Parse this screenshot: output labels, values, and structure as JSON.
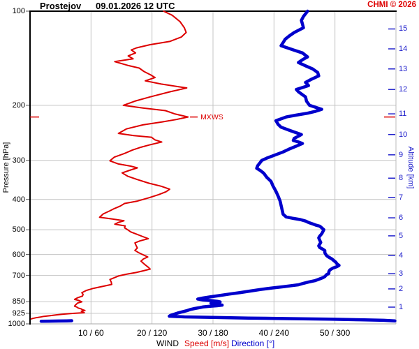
{
  "header": {
    "station": "Prostejov",
    "datetime": "09.01.2026 12 UTC",
    "copyright": "CHMI © 2026"
  },
  "axis_titles": {
    "pressure": "Pressure [hPa]",
    "altitude": "Altitude [km]"
  },
  "footer": {
    "legend_wind": "WIND",
    "legend_speed": "Speed [m/s]",
    "legend_direction": "Direction [°]"
  },
  "colors": {
    "speed": "#dd0000",
    "direction": "#0000cc",
    "grid": "#c4c4c4",
    "axis": "#000000",
    "altitude_axis": "#2222cc",
    "copyright": "#dd0000"
  },
  "chart_data": {
    "type": "line",
    "title": "Prostejov 09.01.2026 12 UTC — vertical wind sounding profile",
    "y_axis": {
      "label": "Pressure [hPa]",
      "scale": "log",
      "range": [
        100,
        1000
      ],
      "ticks": [
        100,
        200,
        300,
        400,
        500,
        600,
        700,
        850,
        925,
        1000
      ]
    },
    "y_axis_right": {
      "label": "Altitude [km]",
      "ticks_km_vs_pressure": [
        [
          1,
          884
        ],
        [
          2,
          773
        ],
        [
          3,
          691
        ],
        [
          4,
          604
        ],
        [
          5,
          523
        ],
        [
          6,
          458
        ],
        [
          7,
          394
        ],
        [
          8,
          342
        ],
        [
          9,
          288
        ],
        [
          10,
          248
        ],
        [
          11,
          213
        ],
        [
          12,
          178
        ],
        [
          13,
          153
        ],
        [
          14,
          132
        ],
        [
          15,
          114
        ]
      ]
    },
    "x_axis": {
      "label": "WIND",
      "speed": {
        "label": "Speed [m/s]",
        "range": [
          0,
          60
        ],
        "ticks": [
          10,
          20,
          30,
          40,
          50
        ]
      },
      "direction": {
        "label": "Direction [°]",
        "range": [
          0,
          360
        ],
        "ticks": [
          60,
          120,
          180,
          240,
          300
        ]
      },
      "tick_labels": [
        "10 / 60",
        "20 / 120",
        "30 / 180",
        "40 / 240",
        "50 / 300"
      ]
    },
    "annotations": {
      "mxws_label": "MXWS",
      "mxws_pressure_hPa": 218,
      "max_wind_speed_ms": 26
    },
    "series": [
      {
        "name": "wind speed",
        "unit": "m/s",
        "color": "#dd0000",
        "points_pressure_value": [
          [
            100,
            21.9
          ],
          [
            103,
            23.3
          ],
          [
            108,
            24.6
          ],
          [
            113,
            25.3
          ],
          [
            117,
            25.6
          ],
          [
            121,
            24.8
          ],
          [
            125,
            22.9
          ],
          [
            128,
            19.7
          ],
          [
            131,
            17.5
          ],
          [
            133,
            16.6
          ],
          [
            136,
            17.3
          ],
          [
            139,
            16.1
          ],
          [
            142,
            16.9
          ],
          [
            145,
            13.9
          ],
          [
            149,
            16.0
          ],
          [
            152,
            17.9
          ],
          [
            156,
            18.7
          ],
          [
            160,
            19.8
          ],
          [
            163,
            20.5
          ],
          [
            167,
            18.9
          ],
          [
            171,
            21.5
          ],
          [
            176,
            25.7
          ],
          [
            181,
            23.0
          ],
          [
            188,
            19.7
          ],
          [
            194,
            17.2
          ],
          [
            200,
            15.3
          ],
          [
            204,
            18.5
          ],
          [
            208,
            22.2
          ],
          [
            213,
            23.7
          ],
          [
            218,
            25.9
          ],
          [
            222,
            24.0
          ],
          [
            226,
            21.7
          ],
          [
            231,
            18.5
          ],
          [
            238,
            15.8
          ],
          [
            246,
            14.5
          ],
          [
            250,
            17.0
          ],
          [
            253,
            19.9
          ],
          [
            258,
            20.5
          ],
          [
            262,
            21.6
          ],
          [
            268,
            19.5
          ],
          [
            273,
            18.0
          ],
          [
            278,
            16.8
          ],
          [
            285,
            15.5
          ],
          [
            293,
            13.8
          ],
          [
            301,
            13.1
          ],
          [
            308,
            14.5
          ],
          [
            313,
            16.5
          ],
          [
            317,
            17.6
          ],
          [
            322,
            16.5
          ],
          [
            329,
            15.1
          ],
          [
            337,
            16.0
          ],
          [
            345,
            17.5
          ],
          [
            355,
            19.5
          ],
          [
            363,
            21.5
          ],
          [
            371,
            22.9
          ],
          [
            378,
            22.3
          ],
          [
            386,
            21.1
          ],
          [
            395,
            19.5
          ],
          [
            405,
            17.6
          ],
          [
            412,
            15.5
          ],
          [
            420,
            14.8
          ],
          [
            428,
            13.8
          ],
          [
            435,
            13.1
          ],
          [
            445,
            12.0
          ],
          [
            456,
            11.4
          ],
          [
            462,
            13.5
          ],
          [
            468,
            15.4
          ],
          [
            474,
            14.5
          ],
          [
            480,
            13.9
          ],
          [
            486,
            15.6
          ],
          [
            493,
            15.5
          ],
          [
            500,
            16.0
          ],
          [
            508,
            16.5
          ],
          [
            517,
            17.5
          ],
          [
            526,
            18.5
          ],
          [
            534,
            19.4
          ],
          [
            543,
            18.0
          ],
          [
            551,
            17.2
          ],
          [
            562,
            17.4
          ],
          [
            572,
            17.6
          ],
          [
            582,
            17.2
          ],
          [
            592,
            17.8
          ],
          [
            601,
            18.5
          ],
          [
            611,
            19.3
          ],
          [
            620,
            18.6
          ],
          [
            630,
            18.2
          ],
          [
            640,
            18.6
          ],
          [
            650,
            19.0
          ],
          [
            659,
            19.4
          ],
          [
            668,
            19.7
          ],
          [
            677,
            18.5
          ],
          [
            685,
            17.4
          ],
          [
            694,
            15.8
          ],
          [
            703,
            14.5
          ],
          [
            712,
            13.8
          ],
          [
            721,
            13.1
          ],
          [
            734,
            13.3
          ],
          [
            748,
            13.4
          ],
          [
            758,
            12.0
          ],
          [
            770,
            10.4
          ],
          [
            782,
            9.2
          ],
          [
            795,
            8.5
          ],
          [
            805,
            8.7
          ],
          [
            815,
            8.6
          ],
          [
            825,
            7.8
          ],
          [
            835,
            7.3
          ],
          [
            842,
            8.0
          ],
          [
            850,
            8.5
          ],
          [
            858,
            7.8
          ],
          [
            865,
            7.6
          ],
          [
            872,
            7.4
          ],
          [
            878,
            7.3
          ],
          [
            884,
            7.7
          ],
          [
            890,
            7.9
          ],
          [
            896,
            8.4
          ],
          [
            901,
            8.6
          ],
          [
            906,
            9.0
          ],
          [
            911,
            8.4
          ],
          [
            916,
            8.6
          ],
          [
            921,
            8.9
          ],
          [
            926,
            7.0
          ],
          [
            931,
            5.4
          ],
          [
            936,
            4.3
          ],
          [
            941,
            3.3
          ],
          [
            946,
            2.3
          ],
          [
            951,
            1.7
          ],
          [
            956,
            1.0
          ],
          [
            961,
            0.4
          ],
          [
            964,
            0.2
          ]
        ]
      },
      {
        "name": "wind direction",
        "unit": "°",
        "color": "#0000cc",
        "points_pressure_value": [
          [
            100,
            273
          ],
          [
            104,
            269
          ],
          [
            107,
            267
          ],
          [
            110,
            268
          ],
          [
            113,
            269
          ],
          [
            117,
            260
          ],
          [
            120,
            255
          ],
          [
            123,
            251
          ],
          [
            126,
            249
          ],
          [
            129,
            247
          ],
          [
            133,
            259
          ],
          [
            136,
            268
          ],
          [
            140,
            273
          ],
          [
            143,
            268
          ],
          [
            146,
            264
          ],
          [
            150,
            272
          ],
          [
            153,
            278
          ],
          [
            157,
            283
          ],
          [
            161,
            284
          ],
          [
            165,
            277
          ],
          [
            169,
            271
          ],
          [
            173,
            274
          ],
          [
            178,
            262
          ],
          [
            181,
            264
          ],
          [
            185,
            268
          ],
          [
            188,
            271
          ],
          [
            194,
            272
          ],
          [
            200,
            275
          ],
          [
            203,
            281
          ],
          [
            206,
            287
          ],
          [
            209,
            281
          ],
          [
            212,
            273
          ],
          [
            215,
            262
          ],
          [
            218,
            252
          ],
          [
            224,
            242
          ],
          [
            230,
            244
          ],
          [
            235,
            247
          ],
          [
            241,
            256
          ],
          [
            248,
            267
          ],
          [
            251,
            264
          ],
          [
            255,
            260
          ],
          [
            259,
            259
          ],
          [
            262,
            264
          ],
          [
            265,
            268
          ],
          [
            270,
            262
          ],
          [
            276,
            255
          ],
          [
            282,
            249
          ],
          [
            290,
            239
          ],
          [
            295,
            233
          ],
          [
            300,
            228
          ],
          [
            306,
            226
          ],
          [
            312,
            224
          ],
          [
            318,
            223
          ],
          [
            324,
            227
          ],
          [
            330,
            230
          ],
          [
            340,
            233
          ],
          [
            350,
            237
          ],
          [
            362,
            239
          ],
          [
            377,
            242
          ],
          [
            390,
            244
          ],
          [
            405,
            246
          ],
          [
            418,
            247
          ],
          [
            432,
            248
          ],
          [
            446,
            249
          ],
          [
            455,
            252
          ],
          [
            460,
            259
          ],
          [
            464,
            266
          ],
          [
            469,
            271
          ],
          [
            474,
            274
          ],
          [
            479,
            278
          ],
          [
            483,
            281
          ],
          [
            487,
            285
          ],
          [
            493,
            287
          ],
          [
            500,
            289
          ],
          [
            508,
            288
          ],
          [
            515,
            287
          ],
          [
            524,
            285
          ],
          [
            531,
            284
          ],
          [
            540,
            285
          ],
          [
            549,
            286
          ],
          [
            556,
            285
          ],
          [
            563,
            284
          ],
          [
            570,
            285
          ],
          [
            577,
            288
          ],
          [
            583,
            290
          ],
          [
            592,
            290
          ],
          [
            600,
            291
          ],
          [
            606,
            292
          ],
          [
            612,
            294
          ],
          [
            620,
            297
          ],
          [
            628,
            299
          ],
          [
            636,
            301
          ],
          [
            643,
            302
          ],
          [
            650,
            304
          ],
          [
            656,
            302
          ],
          [
            663,
            298
          ],
          [
            672,
            295
          ],
          [
            681,
            294
          ],
          [
            690,
            294
          ],
          [
            695,
            292
          ],
          [
            700,
            291
          ],
          [
            706,
            290
          ],
          [
            712,
            288
          ],
          [
            720,
            284
          ],
          [
            728,
            280
          ],
          [
            735,
            274
          ],
          [
            742,
            269
          ],
          [
            750,
            264
          ],
          [
            755,
            257
          ],
          [
            760,
            250
          ],
          [
            768,
            238
          ],
          [
            776,
            227
          ],
          [
            785,
            217
          ],
          [
            794,
            207
          ],
          [
            803,
            196
          ],
          [
            812,
            186
          ],
          [
            820,
            177
          ],
          [
            827,
            170
          ],
          [
            833,
            165
          ],
          [
            838,
            170
          ],
          [
            843,
            179
          ],
          [
            848,
            185
          ],
          [
            851,
            187
          ],
          [
            855,
            182
          ],
          [
            859,
            178
          ],
          [
            863,
            180
          ],
          [
            867,
            185
          ],
          [
            871,
            189
          ],
          [
            875,
            184
          ],
          [
            879,
            176
          ],
          [
            883,
            170
          ],
          [
            887,
            167
          ],
          [
            893,
            162
          ],
          [
            899,
            158
          ],
          [
            906,
            155
          ],
          [
            915,
            150
          ],
          [
            924,
            145
          ],
          [
            933,
            141
          ],
          [
            940,
            138
          ],
          [
            945,
            137
          ],
          [
            950,
            152
          ],
          [
            954,
            180
          ],
          [
            958,
            215
          ],
          [
            962,
            255
          ],
          [
            966,
            295
          ],
          [
            970,
            325
          ],
          [
            974,
            348
          ],
          [
            978,
            359
          ]
        ]
      },
      {
        "name": "wind direction (surface segment)",
        "unit": "°",
        "color": "#0000cc",
        "points_pressure_value": [
          [
            977,
            41
          ],
          [
            978,
            36
          ],
          [
            979,
            28
          ],
          [
            980,
            19
          ],
          [
            981,
            11
          ]
        ]
      }
    ]
  }
}
